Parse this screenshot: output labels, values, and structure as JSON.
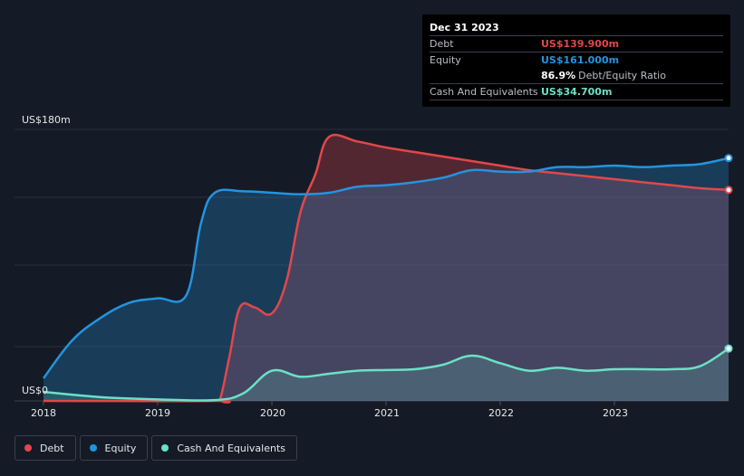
{
  "colors": {
    "debt": "#e2474b",
    "equity": "#2394df",
    "cash": "#6ae1c8",
    "grid": "#2a303a",
    "background": "#151b26"
  },
  "tooltip": {
    "date": "Dec 31 2023",
    "rows": {
      "debt": {
        "label": "Debt",
        "value": "US$139.900m"
      },
      "equity": {
        "label": "Equity",
        "value": "US$161.000m"
      },
      "ratio": {
        "value": "86.9%",
        "text": "Debt/Equity Ratio"
      },
      "cash": {
        "label": "Cash And Equivalents",
        "value": "US$34.700m"
      }
    }
  },
  "legend": {
    "debt": "Debt",
    "equity": "Equity",
    "cash": "Cash And Equivalents"
  },
  "chart_data": {
    "type": "area",
    "title": "",
    "xlabel": "",
    "ylabel": "",
    "ylim": [
      0,
      180
    ],
    "y_tick_labels": {
      "top": "US$180m",
      "bottom": "US$0"
    },
    "x_tick_labels": [
      "2018",
      "2019",
      "2020",
      "2021",
      "2022",
      "2023"
    ],
    "xlim": [
      2018.0,
      2024.0
    ],
    "series": [
      {
        "name": "Debt",
        "points": [
          [
            2018.0,
            0
          ],
          [
            2019.5,
            0
          ],
          [
            2019.55,
            2
          ],
          [
            2019.63,
            30
          ],
          [
            2019.72,
            62
          ],
          [
            2019.85,
            62
          ],
          [
            2020.0,
            58
          ],
          [
            2020.13,
            80
          ],
          [
            2020.25,
            125
          ],
          [
            2020.38,
            150
          ],
          [
            2020.5,
            175
          ],
          [
            2020.75,
            172
          ],
          [
            2021.0,
            168
          ],
          [
            2021.25,
            165
          ],
          [
            2021.5,
            162
          ],
          [
            2021.75,
            159
          ],
          [
            2022.0,
            156
          ],
          [
            2022.25,
            153
          ],
          [
            2022.5,
            151
          ],
          [
            2022.75,
            149
          ],
          [
            2023.0,
            147
          ],
          [
            2023.25,
            145
          ],
          [
            2023.5,
            143
          ],
          [
            2023.75,
            141
          ],
          [
            2024.0,
            139.9
          ]
        ]
      },
      {
        "name": "Equity",
        "points": [
          [
            2018.0,
            15
          ],
          [
            2018.25,
            40
          ],
          [
            2018.5,
            55
          ],
          [
            2018.75,
            65
          ],
          [
            2019.0,
            68
          ],
          [
            2019.25,
            70
          ],
          [
            2019.38,
            118
          ],
          [
            2019.5,
            138
          ],
          [
            2019.75,
            139
          ],
          [
            2020.0,
            138
          ],
          [
            2020.25,
            137
          ],
          [
            2020.5,
            138
          ],
          [
            2020.75,
            142
          ],
          [
            2021.0,
            143
          ],
          [
            2021.25,
            145
          ],
          [
            2021.5,
            148
          ],
          [
            2021.75,
            153
          ],
          [
            2022.0,
            152
          ],
          [
            2022.25,
            152
          ],
          [
            2022.5,
            155
          ],
          [
            2022.75,
            155
          ],
          [
            2023.0,
            156
          ],
          [
            2023.25,
            155
          ],
          [
            2023.5,
            156
          ],
          [
            2023.75,
            157
          ],
          [
            2024.0,
            161
          ]
        ]
      },
      {
        "name": "Cash And Equivalents",
        "points": [
          [
            2018.0,
            6
          ],
          [
            2018.5,
            2.5
          ],
          [
            2019.0,
            1
          ],
          [
            2019.5,
            0.5
          ],
          [
            2019.75,
            5
          ],
          [
            2020.0,
            20
          ],
          [
            2020.25,
            16
          ],
          [
            2020.5,
            18
          ],
          [
            2020.75,
            20
          ],
          [
            2021.0,
            20.5
          ],
          [
            2021.25,
            21
          ],
          [
            2021.5,
            24
          ],
          [
            2021.75,
            30
          ],
          [
            2022.0,
            25
          ],
          [
            2022.25,
            20
          ],
          [
            2022.5,
            22
          ],
          [
            2022.75,
            20
          ],
          [
            2023.0,
            21
          ],
          [
            2023.25,
            21
          ],
          [
            2023.5,
            21
          ],
          [
            2023.75,
            23
          ],
          [
            2024.0,
            34.7
          ]
        ]
      }
    ]
  }
}
